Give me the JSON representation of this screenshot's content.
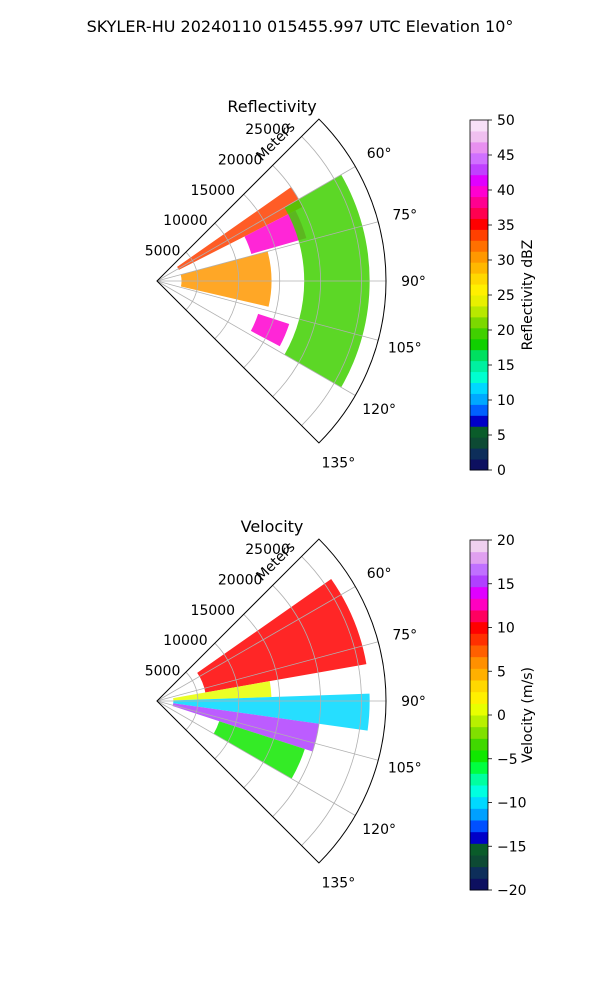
{
  "suptitle": "SKYLER-HU  20240110  015455.997 UTC Elevation 10°",
  "chart_data": [
    {
      "type": "heatmap",
      "subtype": "polar-sector",
      "title": "Reflectivity",
      "range_label": "Meters",
      "range_ticks": [
        5000,
        10000,
        15000,
        20000,
        25000
      ],
      "range_tick_labels": [
        "5000",
        "10000",
        "15000",
        "20000",
        "25000"
      ],
      "range_max": 28000,
      "azimuth_range_deg": [
        45,
        135
      ],
      "azimuth_ticks": [
        60,
        75,
        90,
        105,
        120,
        135
      ],
      "azimuth_tick_labels": [
        "60°",
        "75°",
        "90°",
        "105°",
        "120°",
        "135°"
      ],
      "grid": true,
      "colorbar": {
        "label": "Reflectivity dBZ",
        "min": 0,
        "max": 50,
        "ticks": [
          0,
          5,
          10,
          15,
          20,
          25,
          30,
          35,
          40,
          45,
          50
        ],
        "tick_labels": [
          "0",
          "5",
          "10",
          "15",
          "20",
          "25",
          "30",
          "35",
          "40",
          "45",
          "50"
        ],
        "colors": [
          "#0d1060",
          "#0d2e5a",
          "#0d4a34",
          "#0a5c2a",
          "#0000c8",
          "#0060ff",
          "#00a8ff",
          "#00d8ff",
          "#00ffd0",
          "#00f0a0",
          "#00e060",
          "#10d000",
          "#40d000",
          "#7cd800",
          "#b8e800",
          "#e8f000",
          "#fff000",
          "#ffd800",
          "#ffb800",
          "#ff9800",
          "#ff7000",
          "#ff4000",
          "#ff0000",
          "#ff0050",
          "#ff0090",
          "#ff00d0",
          "#e000ff",
          "#c040ff",
          "#d070ff",
          "#e890f0",
          "#f0c0f0",
          "#f8e0f8"
        ]
      },
      "field_summary": [
        {
          "azimuth_deg": [
            55,
            63
          ],
          "range_m": [
            3000,
            20000
          ],
          "value_dbz": 33
        },
        {
          "azimuth_deg": [
            63,
            74
          ],
          "range_m": [
            12000,
            19000
          ],
          "value_dbz": 40
        },
        {
          "azimuth_deg": [
            75,
            103
          ],
          "range_m": [
            3000,
            14000
          ],
          "value_dbz": 30
        },
        {
          "azimuth_deg": [
            108,
            118
          ],
          "range_m": [
            13000,
            17000
          ],
          "value_dbz": 40
        },
        {
          "azimuth_deg": [
            60,
            120
          ],
          "range_m": [
            18000,
            26000
          ],
          "value_dbz": 20
        }
      ]
    },
    {
      "type": "heatmap",
      "subtype": "polar-sector",
      "title": "Velocity",
      "range_label": "Meters",
      "range_ticks": [
        5000,
        10000,
        15000,
        20000,
        25000
      ],
      "range_tick_labels": [
        "5000",
        "10000",
        "15000",
        "20000",
        "25000"
      ],
      "range_max": 28000,
      "azimuth_range_deg": [
        45,
        135
      ],
      "azimuth_ticks": [
        60,
        75,
        90,
        105,
        120,
        135
      ],
      "azimuth_tick_labels": [
        "60°",
        "75°",
        "90°",
        "105°",
        "120°",
        "135°"
      ],
      "grid": true,
      "colorbar": {
        "label": "Velocity (m/s)",
        "min": -20,
        "max": 20,
        "ticks": [
          -20,
          -15,
          -10,
          -5,
          0,
          5,
          10,
          15,
          20
        ],
        "tick_labels": [
          "−20",
          "−15",
          "−10",
          "−5",
          "0",
          "5",
          "10",
          "15",
          "20"
        ],
        "colors": [
          "#0d1060",
          "#0d2e5a",
          "#0d4a34",
          "#0a5c2a",
          "#0000c8",
          "#0050ff",
          "#00a0ff",
          "#00d8ff",
          "#00ffe0",
          "#00ffa0",
          "#00ff40",
          "#10e800",
          "#40d800",
          "#80e000",
          "#b8f000",
          "#e8ff00",
          "#fff000",
          "#ffd800",
          "#ffb000",
          "#ff9000",
          "#ff6000",
          "#ff3000",
          "#ff0000",
          "#ff0060",
          "#ff00c0",
          "#e000ff",
          "#b040ff",
          "#c070ff",
          "#e0a0f0",
          "#f0d0f0"
        ]
      },
      "field_summary": [
        {
          "azimuth_deg": [
            55,
            80
          ],
          "range_m": [
            6000,
            26000
          ],
          "value_ms": 10
        },
        {
          "azimuth_deg": [
            80,
            88
          ],
          "range_m": [
            2000,
            14000
          ],
          "value_ms": 0
        },
        {
          "azimuth_deg": [
            88,
            98
          ],
          "range_m": [
            2000,
            26000
          ],
          "value_ms": -10
        },
        {
          "azimuth_deg": [
            98,
            108
          ],
          "range_m": [
            2000,
            20000
          ],
          "value_ms": 15
        },
        {
          "azimuth_deg": [
            108,
            120
          ],
          "range_m": [
            8000,
            19000
          ],
          "value_ms": -5
        }
      ]
    }
  ]
}
